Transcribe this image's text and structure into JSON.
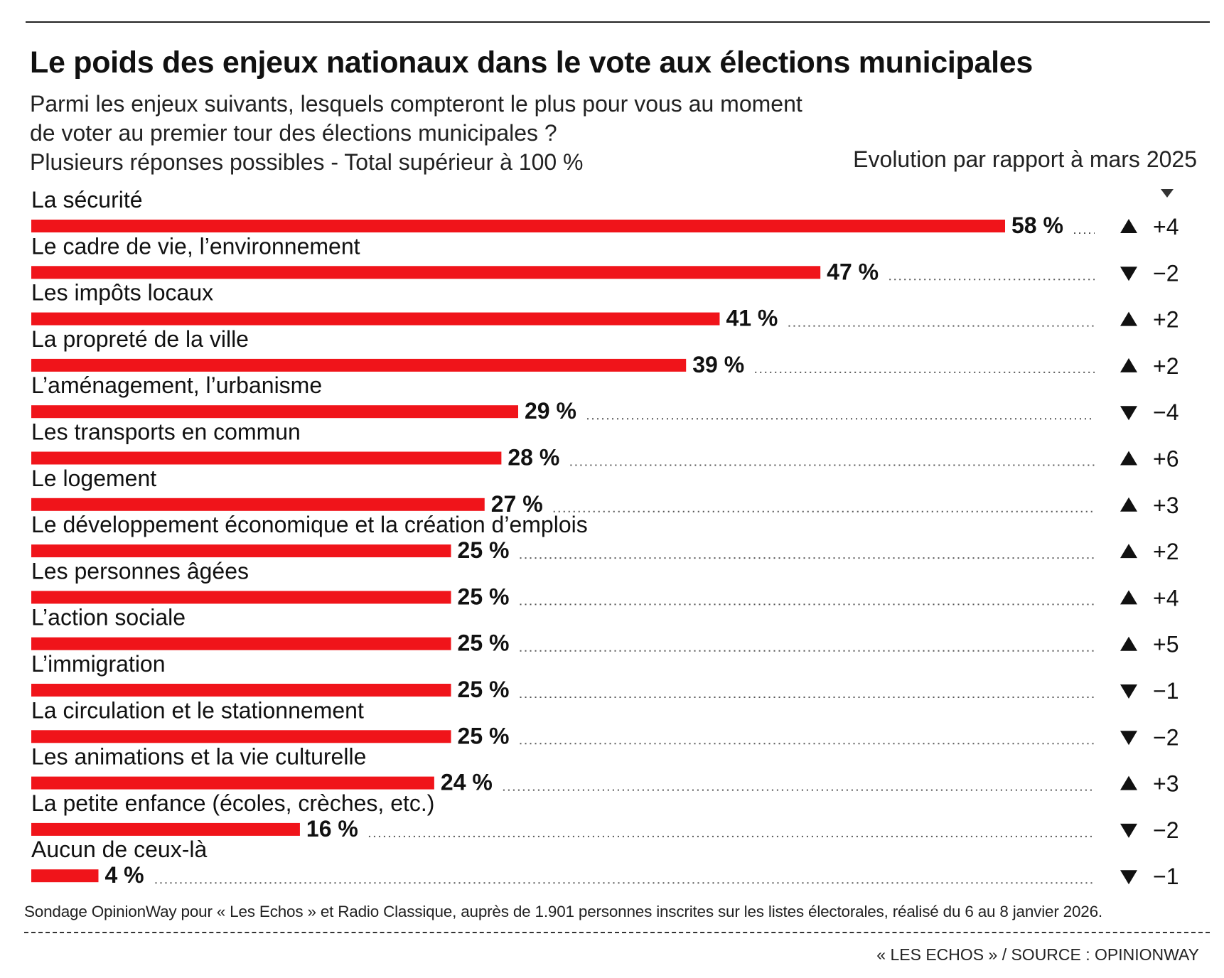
{
  "header": {
    "title": "Le poids des enjeux nationaux dans le vote aux élections municipales",
    "subtitle_lines": [
      "Parmi les enjeux suivants, lesquels compteront le plus pour vous au moment",
      "de voter au premier tour des élections municipales ?",
      "Plusieurs réponses possibles - Total supérieur à 100 %"
    ],
    "evolution_header": "Evolution par rapport à mars 2025"
  },
  "colors": {
    "bar": "#f0141a",
    "text": "#111111",
    "leader": "#555555"
  },
  "chart_data": {
    "type": "bar",
    "orientation": "horizontal",
    "title": "Le poids des enjeux nationaux dans le vote aux élections municipales",
    "unit": "%",
    "xlim": [
      0,
      58
    ],
    "categories": [
      "La sécurité",
      "Le cadre de vie, l’environnement",
      "Les impôts locaux",
      "La propreté de la ville",
      "L’aménagement, l’urbanisme",
      "Les transports en commun",
      "Le logement",
      "Le développement économique et la création d’emplois",
      "Les personnes âgées",
      "L’action sociale",
      "L’immigration",
      "La circulation et le stationnement",
      "Les animations et la vie culturelle",
      "La petite enfance (écoles, crèches, etc.)",
      "Aucun de ceux-là"
    ],
    "values": [
      58,
      47,
      41,
      39,
      29,
      28,
      27,
      25,
      25,
      25,
      25,
      25,
      24,
      16,
      4
    ],
    "value_labels": [
      "58 %",
      "47 %",
      "41 %",
      "39 %",
      "29 %",
      "28 %",
      "27 %",
      "25 %",
      "25 %",
      "25 %",
      "25 %",
      "25 %",
      "24 %",
      "16 %",
      "4 %"
    ],
    "evolution": [
      4,
      -2,
      2,
      2,
      -4,
      6,
      3,
      2,
      4,
      5,
      -1,
      -2,
      3,
      -2,
      -1
    ],
    "evolution_labels": [
      "+4",
      "−2",
      "+2",
      "+2",
      "−4",
      "+6",
      "+3",
      "+2",
      "+4",
      "+5",
      "−1",
      "−2",
      "+3",
      "−2",
      "−1"
    ],
    "evolution_title": "Evolution par rapport à mars 2025"
  },
  "footer": {
    "note": "Sondage OpinionWay pour « Les Echos » et Radio Classique, auprès de 1.901 personnes inscrites sur les listes électorales, réalisé du 6 au 8 janvier 2026.",
    "credit": "« LES ECHOS » / SOURCE : OPINIONWAY"
  }
}
